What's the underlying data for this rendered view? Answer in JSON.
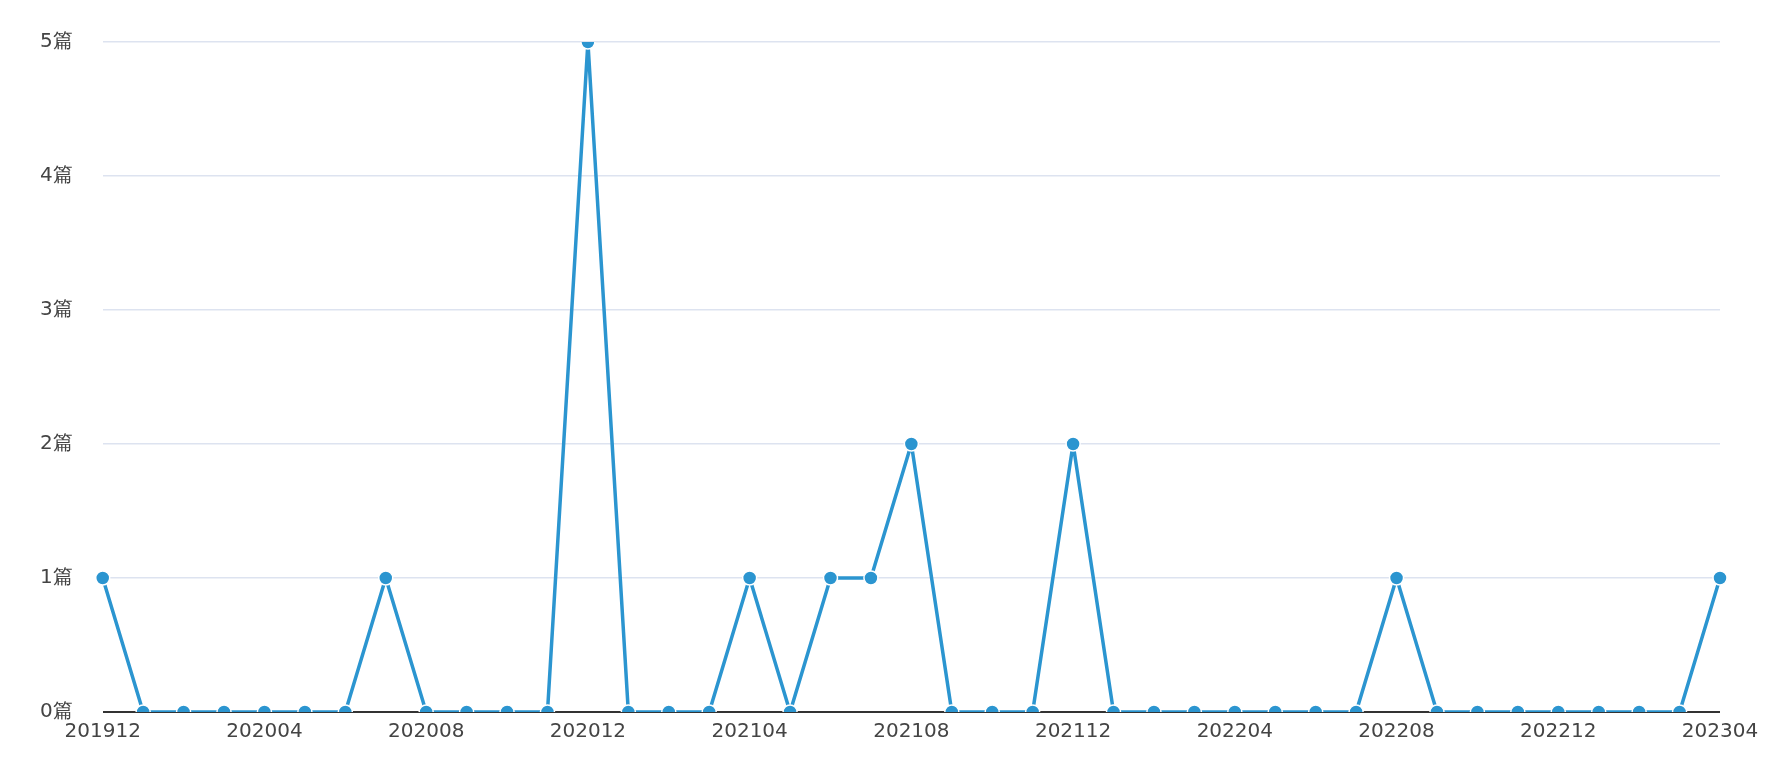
{
  "chart_data": {
    "type": "line",
    "categories": [
      "201912",
      null,
      null,
      null,
      "202004",
      null,
      null,
      null,
      "202008",
      null,
      null,
      null,
      "202012",
      null,
      null,
      null,
      "202104",
      null,
      null,
      null,
      "202108",
      null,
      null,
      null,
      "202112",
      null,
      null,
      null,
      "202204",
      null,
      null,
      null,
      "202208",
      null,
      null,
      null,
      "202212",
      null,
      null,
      null,
      "202304"
    ],
    "series": [
      {
        "color": "#2b95d0",
        "values": [
          1,
          0,
          0,
          0,
          0,
          0,
          0,
          1,
          0,
          0,
          0,
          0,
          5,
          0,
          0,
          0,
          1,
          0,
          1,
          1,
          2,
          0,
          0,
          0,
          2,
          0,
          0,
          0,
          0,
          0,
          0,
          0,
          1,
          0,
          0,
          0,
          0,
          0,
          0,
          0,
          1
        ]
      }
    ],
    "ylim": [
      0,
      5
    ],
    "yticks": [
      {
        "value": 0,
        "label": "0篇"
      },
      {
        "value": 1,
        "label": "1篇"
      },
      {
        "value": 2,
        "label": "2篇"
      },
      {
        "value": 3,
        "label": "3篇"
      },
      {
        "value": 4,
        "label": "4篇"
      },
      {
        "value": 5,
        "label": "5篇"
      }
    ],
    "grid": "y",
    "legend": false,
    "marker": "circle",
    "line_style": "solid"
  }
}
